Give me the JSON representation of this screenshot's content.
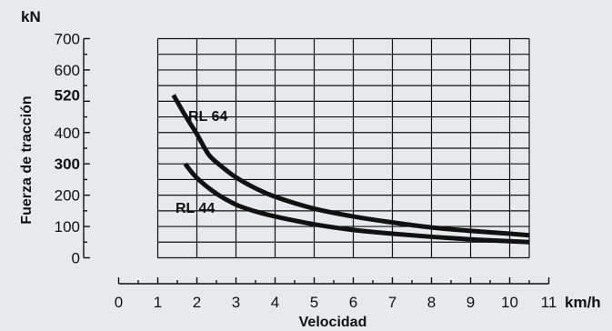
{
  "chart_data": {
    "type": "line",
    "y_unit": "kN",
    "x_unit": "km/h",
    "ylabel": "Fuerza de tracción",
    "xlabel": "Velocidad",
    "xlim": [
      0,
      11
    ],
    "ylim": [
      0,
      700
    ],
    "x_ticks": [
      0,
      1,
      2,
      3,
      4,
      5,
      6,
      7,
      8,
      9,
      10,
      11
    ],
    "y_ticks": [
      {
        "value": 0,
        "label": "0",
        "bold": false
      },
      {
        "value": 100,
        "label": "100",
        "bold": false
      },
      {
        "value": 200,
        "label": "200",
        "bold": false
      },
      {
        "value": 300,
        "label": "300",
        "bold": true
      },
      {
        "value": 400,
        "label": "400",
        "bold": false
      },
      {
        "value": 520,
        "label": "520",
        "bold": true
      },
      {
        "value": 600,
        "label": "600",
        "bold": false
      },
      {
        "value": 700,
        "label": "700",
        "bold": false
      }
    ],
    "grid": {
      "x_from": 1,
      "x_to": 10.5,
      "y_from": 0,
      "y_to": 700
    },
    "series": [
      {
        "name": "RL 64",
        "x": [
          1.4,
          1.7,
          2.0,
          2.3,
          2.6,
          3.0,
          3.5,
          4.0,
          5.0,
          6.0,
          7.0,
          8.0,
          9.0,
          10.0,
          10.5
        ],
        "y": [
          520,
          455,
          395,
          330,
          295,
          257,
          222,
          195,
          157,
          132,
          113,
          97,
          86,
          77,
          72
        ]
      },
      {
        "name": "RL 44",
        "x": [
          1.7,
          2.0,
          2.5,
          3.0,
          3.5,
          4.0,
          5.0,
          6.0,
          7.0,
          8.0,
          9.0,
          10.0,
          10.5
        ],
        "y": [
          300,
          255,
          205,
          170,
          148,
          132,
          107,
          89,
          77,
          67,
          59,
          53,
          50
        ]
      }
    ]
  }
}
